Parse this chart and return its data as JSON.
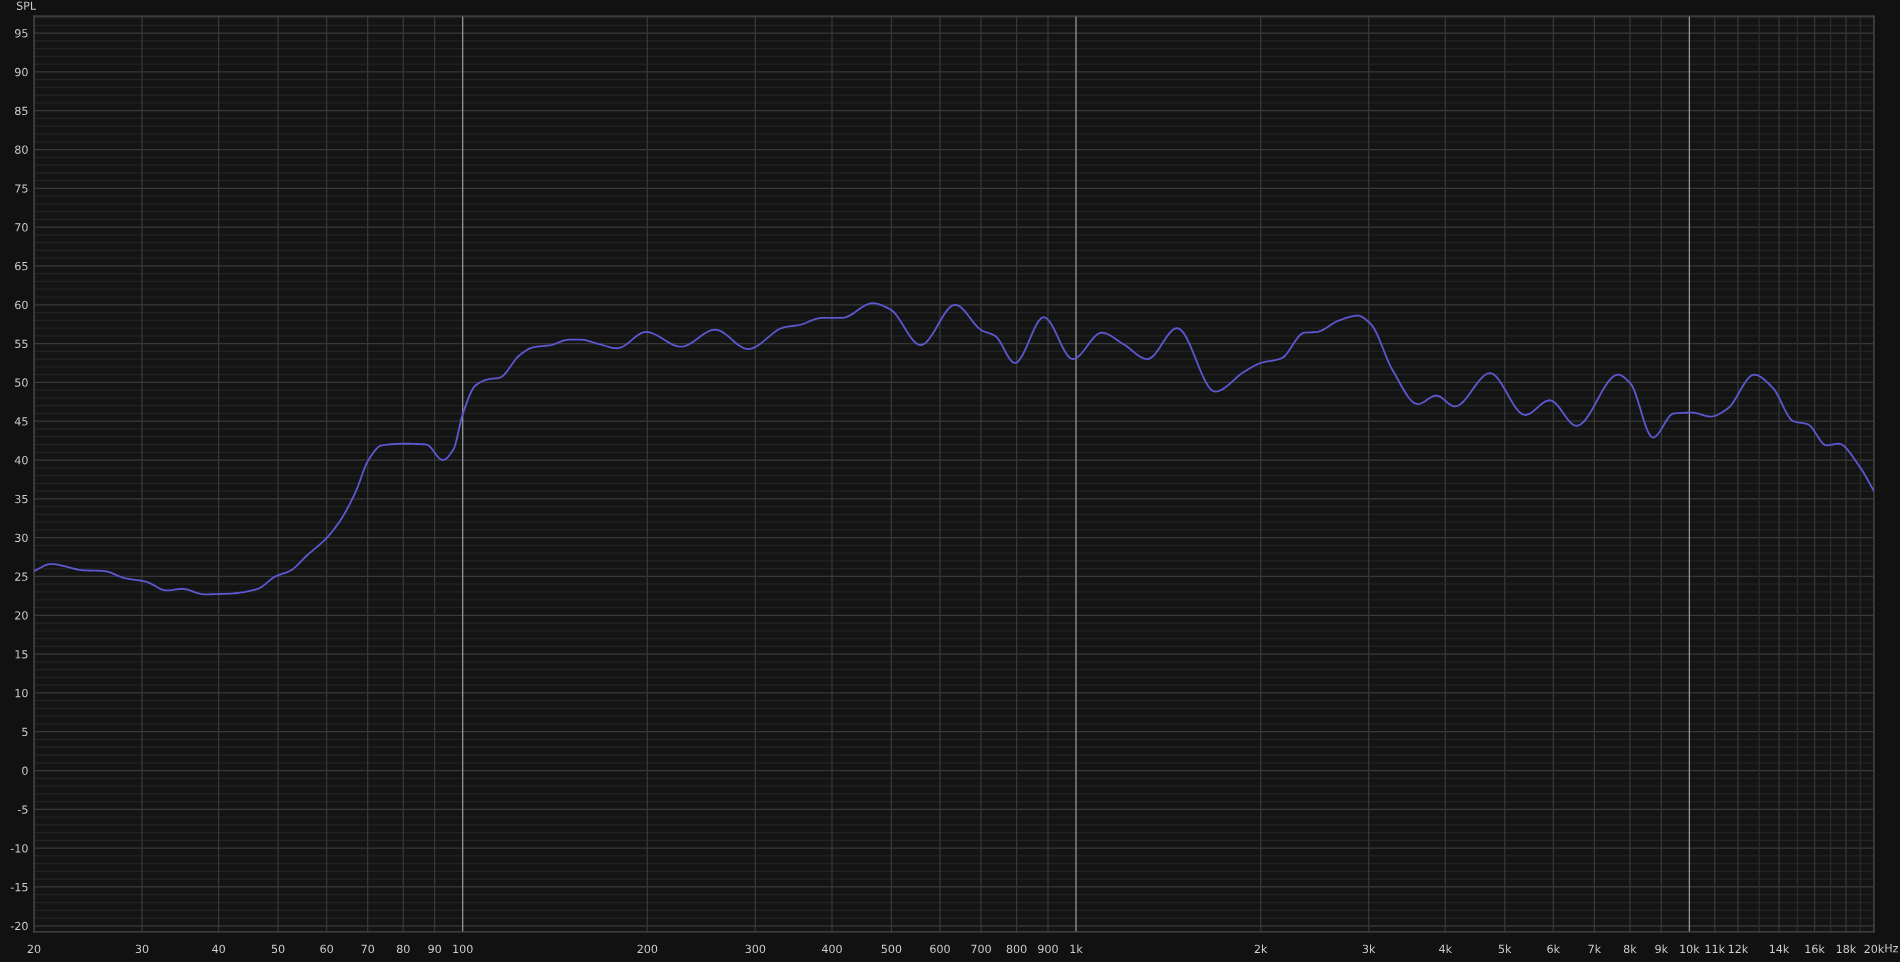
{
  "chart_data": {
    "type": "line",
    "ylabel": "SPL",
    "xlabel": "Hz",
    "log": "x",
    "grid": true,
    "color": "#5c58d0",
    "x": [
      20,
      21.3,
      24.1,
      26,
      28.1,
      30.5,
      32.9,
      34.9,
      37.9,
      41.9,
      46.3,
      49.5,
      52.5,
      55.7,
      59.9,
      63.5,
      66.9,
      70.2,
      73.8,
      80.2,
      87.2,
      92.8,
      96.6,
      100,
      104.9,
      110,
      114.8,
      123.8,
      130,
      139,
      149,
      156,
      165.7,
      178.6,
      199,
      227,
      258,
      292,
      334,
      354,
      385,
      415,
      466,
      498,
      558,
      635,
      702,
      738,
      795,
      886,
      988,
      1101,
      1196,
      1307,
      1462,
      1685,
      1882,
      2001,
      2162,
      2356,
      2468,
      2688,
      2880,
      3018,
      3286,
      3606,
      3868,
      4147,
      4730,
      5396,
      5921,
      6548,
      7646,
      8010,
      8722,
      9428,
      10106,
      10840,
      11534,
      12754,
      13678,
      14774,
      15600,
      16730,
      17522,
      18928,
      20000
    ],
    "values": [
      25.7,
      26.6,
      25.8,
      25.7,
      24.8,
      24.3,
      23.2,
      23.4,
      22.7,
      22.8,
      23.4,
      25.0,
      25.8,
      27.7,
      29.9,
      32.5,
      35.9,
      40.0,
      41.9,
      42.1,
      42.0,
      40.0,
      41.4,
      45.9,
      49.6,
      50.4,
      50.6,
      53.5,
      54.5,
      54.8,
      55.5,
      55.5,
      55.0,
      54.4,
      56.5,
      54.6,
      56.8,
      54.3,
      57.1,
      57.4,
      58.3,
      58.3,
      60.2,
      59.4,
      54.8,
      60.0,
      56.7,
      56.0,
      52.5,
      58.4,
      53.0,
      56.4,
      54.9,
      53.0,
      57.0,
      48.8,
      51.4,
      52.5,
      53.1,
      56.4,
      56.5,
      58.0,
      58.6,
      57.6,
      51.5,
      47.2,
      48.3,
      46.9,
      51.2,
      45.8,
      47.7,
      44.4,
      51.0,
      49.9,
      42.9,
      46.0,
      46.1,
      45.6,
      46.6,
      51.0,
      49.3,
      45.0,
      44.6,
      41.9,
      42.1,
      39.2,
      36.0
    ],
    "xlim": [
      20,
      20000
    ],
    "ylim": [
      -20.8,
      97.2
    ],
    "xticks": [
      20,
      30,
      40,
      50,
      60,
      70,
      80,
      90,
      100,
      200,
      300,
      400,
      500,
      600,
      700,
      800,
      900,
      {
        "value": 1000,
        "label": "1k"
      },
      {
        "value": 2000,
        "label": "2k"
      },
      {
        "value": 3000,
        "label": "3k"
      },
      {
        "value": 4000,
        "label": "4k"
      },
      {
        "value": 5000,
        "label": "5k"
      },
      {
        "value": 6000,
        "label": "6k"
      },
      {
        "value": 7000,
        "label": "7k"
      },
      {
        "value": 8000,
        "label": "8k"
      },
      {
        "value": 9000,
        "label": "9k"
      },
      {
        "value": 10000,
        "label": "10k"
      },
      {
        "value": 11000,
        "label": "11k"
      },
      {
        "value": 12000,
        "label": "12k"
      },
      {
        "value": 13000,
        "label": null
      },
      {
        "value": 14000,
        "label": "14k"
      },
      {
        "value": 15000,
        "label": null
      },
      {
        "value": 16000,
        "label": "16k"
      },
      {
        "value": 17000,
        "label": null
      },
      {
        "value": 18000,
        "label": "18k"
      },
      {
        "value": 19000,
        "label": null
      },
      {
        "value": 20000,
        "label": "20k"
      }
    ],
    "yticks": [
      -20,
      {
        "value": -19,
        "label": null
      },
      {
        "value": -18,
        "label": null
      },
      {
        "value": -17,
        "label": null
      },
      {
        "value": -16,
        "label": null
      },
      -15,
      {
        "value": -14,
        "label": null
      },
      {
        "value": -13,
        "label": null
      },
      {
        "value": -12,
        "label": null
      },
      {
        "value": -11,
        "label": null
      },
      -10,
      {
        "value": -9,
        "label": null
      },
      {
        "value": -8,
        "label": null
      },
      {
        "value": -7,
        "label": null
      },
      {
        "value": -6,
        "label": null
      },
      -5,
      {
        "value": -4,
        "label": null
      },
      {
        "value": -3,
        "label": null
      },
      {
        "value": -2,
        "label": null
      },
      {
        "value": -1,
        "label": null
      },
      0,
      {
        "value": 1,
        "label": null
      },
      {
        "value": 2,
        "label": null
      },
      {
        "value": 3,
        "label": null
      },
      {
        "value": 4,
        "label": null
      },
      5,
      {
        "value": 6,
        "label": null
      },
      {
        "value": 7,
        "label": null
      },
      {
        "value": 8,
        "label": null
      },
      {
        "value": 9,
        "label": null
      },
      10,
      {
        "value": 11,
        "label": null
      },
      {
        "value": 12,
        "label": null
      },
      {
        "value": 13,
        "label": null
      },
      {
        "value": 14,
        "label": null
      },
      15,
      {
        "value": 16,
        "label": null
      },
      {
        "value": 17,
        "label": null
      },
      {
        "value": 18,
        "label": null
      },
      {
        "value": 19,
        "label": null
      },
      20,
      {
        "value": 21,
        "label": null
      },
      {
        "value": 22,
        "label": null
      },
      {
        "value": 23,
        "label": null
      },
      {
        "value": 24,
        "label": null
      },
      25,
      {
        "value": 26,
        "label": null
      },
      {
        "value": 27,
        "label": null
      },
      {
        "value": 28,
        "label": null
      },
      {
        "value": 29,
        "label": null
      },
      30,
      {
        "value": 31,
        "label": null
      },
      {
        "value": 32,
        "label": null
      },
      {
        "value": 33,
        "label": null
      },
      {
        "value": 34,
        "label": null
      },
      35,
      {
        "value": 36,
        "label": null
      },
      {
        "value": 37,
        "label": null
      },
      {
        "value": 38,
        "label": null
      },
      {
        "value": 39,
        "label": null
      },
      40,
      {
        "value": 41,
        "label": null
      },
      {
        "value": 42,
        "label": null
      },
      {
        "value": 43,
        "label": null
      },
      {
        "value": 44,
        "label": null
      },
      45,
      {
        "value": 46,
        "label": null
      },
      {
        "value": 47,
        "label": null
      },
      {
        "value": 48,
        "label": null
      },
      {
        "value": 49,
        "label": null
      },
      50,
      {
        "value": 51,
        "label": null
      },
      {
        "value": 52,
        "label": null
      },
      {
        "value": 53,
        "label": null
      },
      {
        "value": 54,
        "label": null
      },
      55,
      {
        "value": 56,
        "label": null
      },
      {
        "value": 57,
        "label": null
      },
      {
        "value": 58,
        "label": null
      },
      {
        "value": 59,
        "label": null
      },
      60,
      {
        "value": 61,
        "label": null
      },
      {
        "value": 62,
        "label": null
      },
      {
        "value": 63,
        "label": null
      },
      {
        "value": 64,
        "label": null
      },
      65,
      {
        "value": 66,
        "label": null
      },
      {
        "value": 67,
        "label": null
      },
      {
        "value": 68,
        "label": null
      },
      {
        "value": 69,
        "label": null
      },
      70,
      {
        "value": 71,
        "label": null
      },
      {
        "value": 72,
        "label": null
      },
      {
        "value": 73,
        "label": null
      },
      {
        "value": 74,
        "label": null
      },
      75,
      {
        "value": 76,
        "label": null
      },
      {
        "value": 77,
        "label": null
      },
      {
        "value": 78,
        "label": null
      },
      {
        "value": 79,
        "label": null
      },
      80,
      {
        "value": 81,
        "label": null
      },
      {
        "value": 82,
        "label": null
      },
      {
        "value": 83,
        "label": null
      },
      {
        "value": 84,
        "label": null
      },
      85,
      {
        "value": 86,
        "label": null
      },
      {
        "value": 87,
        "label": null
      },
      {
        "value": 88,
        "label": null
      },
      {
        "value": 89,
        "label": null
      },
      90,
      {
        "value": 91,
        "label": null
      },
      {
        "value": 92,
        "label": null
      },
      {
        "value": 93,
        "label": null
      },
      {
        "value": 94,
        "label": null
      },
      95,
      {
        "value": 96,
        "label": null
      },
      {
        "value": 97,
        "label": null
      }
    ]
  }
}
